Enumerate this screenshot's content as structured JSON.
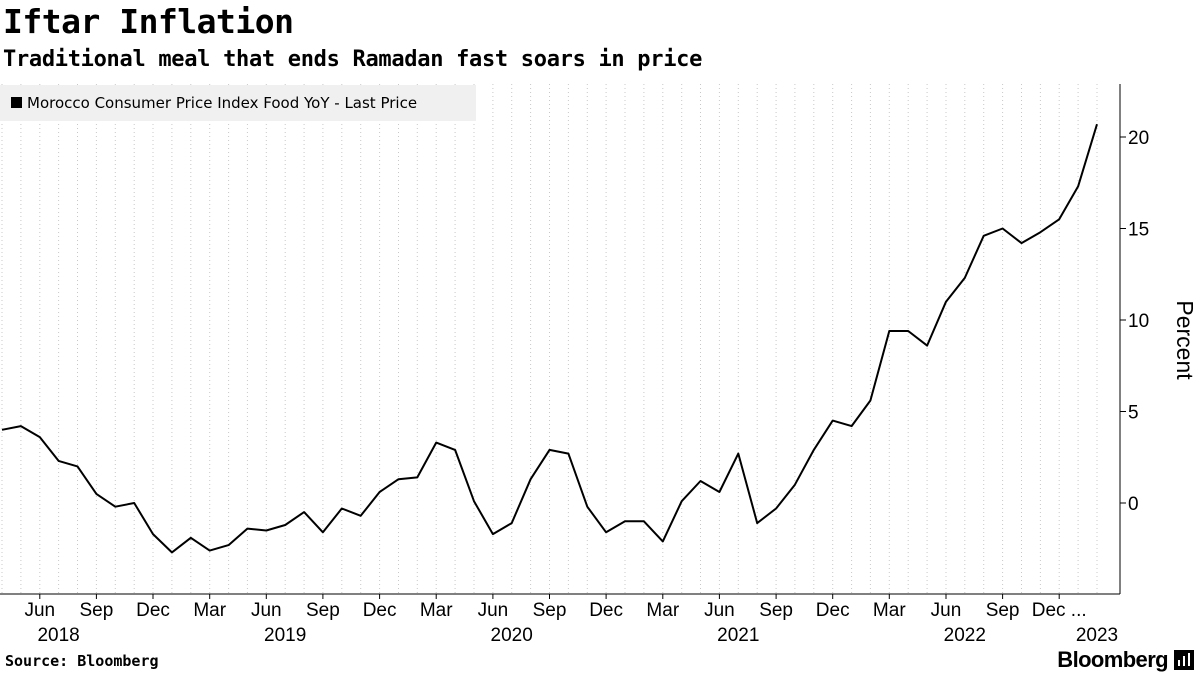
{
  "header": {
    "title": "Iftar Inflation",
    "subtitle": "Traditional meal that ends Ramadan fast soars in price"
  },
  "footer": {
    "source": "Source: Bloomberg",
    "brand": "Bloomberg",
    "brand_icon": "bloomberg-bars-icon"
  },
  "colors": {
    "line": "#000000",
    "legend_bg": "#f0f0f0",
    "grid": "#c8c8c8"
  },
  "chart_data": {
    "type": "line",
    "title": "Iftar Inflation",
    "subtitle": "Traditional meal that ends Ramadan fast soars in price",
    "ylabel": "Percent",
    "xlabel": "",
    "legend": {
      "label": "Morocco Consumer Price Index Food YoY - Last Price",
      "placement": "top-left"
    },
    "grid": {
      "vertical": true,
      "horizontal": false,
      "style": "dotted"
    },
    "y_axis": {
      "side": "right",
      "ticks": [
        0,
        5,
        10,
        15,
        20
      ],
      "range": [
        -5,
        23
      ]
    },
    "x_range": [
      "2018-04",
      "2023-03"
    ],
    "x_month_ticks": [
      "Jun",
      "Sep",
      "Dec",
      "Mar",
      "Jun",
      "Sep",
      "Dec",
      "Mar",
      "Jun",
      "Sep",
      "Dec",
      "Mar",
      "Jun",
      "Sep",
      "Dec",
      "Mar",
      "Jun",
      "Sep",
      "Dec ..."
    ],
    "x_month_tick_dates": [
      "2018-06",
      "2018-09",
      "2018-12",
      "2019-03",
      "2019-06",
      "2019-09",
      "2019-12",
      "2020-03",
      "2020-06",
      "2020-09",
      "2020-12",
      "2021-03",
      "2021-06",
      "2021-09",
      "2021-12",
      "2022-03",
      "2022-06",
      "2022-09",
      "2022-12"
    ],
    "x_year_ticks": [
      "2018",
      "2019",
      "2020",
      "2021",
      "2022",
      "2023"
    ],
    "x_year_tick_dates": [
      "2018-07",
      "2019-07",
      "2020-07",
      "2021-07",
      "2022-07",
      "2023-02"
    ],
    "series": [
      {
        "name": "Morocco Consumer Price Index Food YoY - Last Price",
        "x": [
          "2018-04",
          "2018-05",
          "2018-06",
          "2018-07",
          "2018-08",
          "2018-09",
          "2018-10",
          "2018-11",
          "2018-12",
          "2019-01",
          "2019-02",
          "2019-03",
          "2019-04",
          "2019-05",
          "2019-06",
          "2019-07",
          "2019-08",
          "2019-09",
          "2019-10",
          "2019-11",
          "2019-12",
          "2020-01",
          "2020-02",
          "2020-03",
          "2020-04",
          "2020-05",
          "2020-06",
          "2020-07",
          "2020-08",
          "2020-09",
          "2020-10",
          "2020-11",
          "2020-12",
          "2021-01",
          "2021-02",
          "2021-03",
          "2021-04",
          "2021-05",
          "2021-06",
          "2021-07",
          "2021-08",
          "2021-09",
          "2021-10",
          "2021-11",
          "2021-12",
          "2022-01",
          "2022-02",
          "2022-03",
          "2022-04",
          "2022-05",
          "2022-06",
          "2022-07",
          "2022-08",
          "2022-09",
          "2022-10",
          "2022-11",
          "2022-12",
          "2023-01",
          "2023-02"
        ],
        "values": [
          4.0,
          4.2,
          3.6,
          2.3,
          2.0,
          0.5,
          -0.2,
          0.0,
          -1.7,
          -2.7,
          -1.9,
          -2.6,
          -2.3,
          -1.4,
          -1.5,
          -1.2,
          -0.5,
          -1.6,
          -0.3,
          -0.7,
          0.6,
          1.3,
          1.4,
          3.3,
          2.9,
          0.1,
          -1.7,
          -1.1,
          1.3,
          2.9,
          2.7,
          -0.2,
          -1.6,
          -1.0,
          -1.0,
          -2.1,
          0.1,
          1.2,
          0.6,
          2.7,
          -1.1,
          -0.3,
          1.0,
          2.9,
          4.5,
          4.2,
          5.6,
          9.4,
          9.4,
          8.6,
          11.0,
          12.3,
          14.6,
          15.0,
          14.2,
          14.8,
          15.5,
          17.3,
          20.7
        ]
      }
    ]
  }
}
